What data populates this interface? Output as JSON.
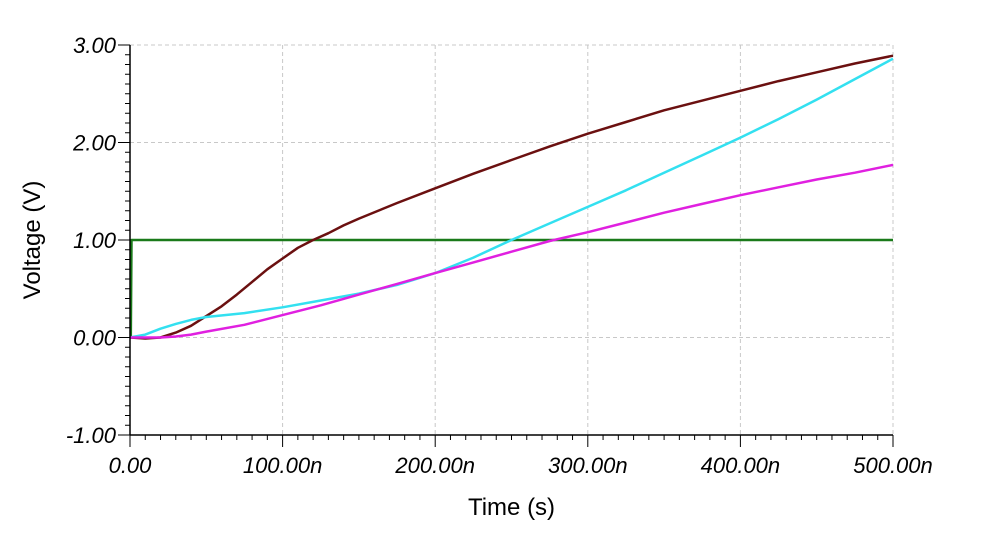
{
  "chart_data": {
    "type": "line",
    "title": "",
    "xlabel": "Time (s)",
    "ylabel": "Voltage (V)",
    "xlim": [
      0,
      500
    ],
    "ylim": [
      -1,
      3
    ],
    "x_unit": "ns",
    "grid": true,
    "x_ticks": [
      {
        "value": 0,
        "label": "0.00"
      },
      {
        "value": 100,
        "label": "100.00n"
      },
      {
        "value": 200,
        "label": "200.00n"
      },
      {
        "value": 300,
        "label": "300.00n"
      },
      {
        "value": 400,
        "label": "400.00n"
      },
      {
        "value": 500,
        "label": "500.00n"
      }
    ],
    "y_ticks": [
      {
        "value": 3,
        "label": "3.00"
      },
      {
        "value": 2,
        "label": "2.00"
      },
      {
        "value": 1,
        "label": "1.00"
      },
      {
        "value": 0,
        "label": "0.00"
      },
      {
        "value": -1,
        "label": "-1.00"
      }
    ],
    "series": [
      {
        "color": "#1a7a1a",
        "x": [
          0,
          0.5,
          1,
          500
        ],
        "y": [
          0,
          0,
          1.0,
          1.0
        ]
      },
      {
        "color": "#6b1010",
        "x": [
          0,
          10,
          20,
          30,
          40,
          50,
          60,
          70,
          80,
          90,
          100,
          110,
          120,
          130,
          140,
          150,
          175,
          200,
          225,
          250,
          275,
          300,
          325,
          350,
          375,
          400,
          425,
          450,
          475,
          500
        ],
        "y": [
          0,
          -0.01,
          0.0,
          0.05,
          0.12,
          0.22,
          0.32,
          0.44,
          0.57,
          0.7,
          0.81,
          0.92,
          1.0,
          1.07,
          1.15,
          1.22,
          1.38,
          1.53,
          1.68,
          1.82,
          1.96,
          2.09,
          2.21,
          2.33,
          2.43,
          2.53,
          2.63,
          2.72,
          2.81,
          2.89
        ]
      },
      {
        "color": "#33e0f0",
        "x": [
          0,
          10,
          20,
          30,
          40,
          50,
          75,
          100,
          125,
          150,
          175,
          200,
          225,
          250,
          275,
          300,
          325,
          350,
          375,
          400,
          425,
          450,
          475,
          500
        ],
        "y": [
          0,
          0.03,
          0.09,
          0.14,
          0.18,
          0.21,
          0.25,
          0.31,
          0.38,
          0.45,
          0.54,
          0.66,
          0.82,
          1.0,
          1.17,
          1.34,
          1.51,
          1.69,
          1.87,
          2.05,
          2.24,
          2.44,
          2.65,
          2.86
        ]
      },
      {
        "color": "#e020e0",
        "x": [
          0,
          10,
          20,
          30,
          40,
          50,
          75,
          100,
          125,
          150,
          175,
          200,
          225,
          250,
          275,
          300,
          325,
          350,
          375,
          400,
          425,
          450,
          475,
          500
        ],
        "y": [
          0,
          0.0,
          0.0,
          0.01,
          0.03,
          0.06,
          0.13,
          0.23,
          0.33,
          0.44,
          0.55,
          0.66,
          0.77,
          0.88,
          0.99,
          1.08,
          1.18,
          1.28,
          1.37,
          1.46,
          1.54,
          1.62,
          1.69,
          1.77
        ]
      }
    ]
  }
}
